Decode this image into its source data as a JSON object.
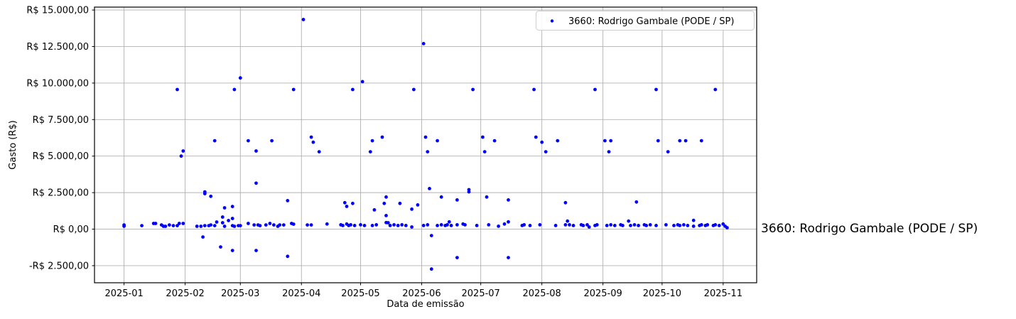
{
  "chart_data": {
    "type": "scatter",
    "title": "",
    "xlabel": "Data de emissão",
    "ylabel": "Gasto (R$)",
    "grid": true,
    "x_tick_labels": [
      "2025-01",
      "2025-02",
      "2025-03",
      "2025-04",
      "2025-05",
      "2025-06",
      "2025-07",
      "2025-08",
      "2025-09",
      "2025-10",
      "2025-11"
    ],
    "y_tick_labels": [
      "R$ 15.000,00",
      "R$ 12.500,00",
      "R$ 10.000,00",
      "R$ 7.500,00",
      "R$ 5.000,00",
      "R$ 2.500,00",
      "R$ 0,00",
      "-R$ 2.500,00"
    ],
    "y_tick_values": [
      15000,
      12500,
      10000,
      7500,
      5000,
      2500,
      0,
      -2500
    ],
    "xlim": [
      "2024-12-17",
      "2025-11-18"
    ],
    "ylim": [
      -3670,
      15200
    ],
    "legend": {
      "label": "3660: Rodrigo Gambale (PODE / SP)",
      "position": "upper right",
      "marker_color": "#0000ff"
    },
    "annotation": {
      "text": "3660: Rodrigo Gambale (PODE / SP)",
      "color": "#1a1aff"
    },
    "colors": {
      "marker": "#0000ff",
      "grid": "#b0b0b0",
      "axis": "#000000",
      "background": "#ffffff",
      "legend_border": "#cccccc"
    },
    "series": [
      {
        "name": "3660: Rodrigo Gambale (PODE / SP)",
        "points": [
          [
            "2025-01-28",
            9560
          ],
          [
            "2025-02-26",
            9560
          ],
          [
            "2025-03-28",
            9560
          ],
          [
            "2025-04-27",
            9560
          ],
          [
            "2025-05-28",
            9560
          ],
          [
            "2025-06-27",
            9560
          ],
          [
            "2025-07-28",
            9560
          ],
          [
            "2025-08-28",
            9560
          ],
          [
            "2025-09-28",
            9560
          ],
          [
            "2025-10-28",
            9560
          ],
          [
            "2025-03-01",
            10350
          ],
          [
            "2025-05-02",
            10100
          ],
          [
            "2025-04-02",
            14350
          ],
          [
            "2025-06-02",
            12700
          ],
          [
            "2025-02-16",
            6050
          ],
          [
            "2025-03-05",
            6050
          ],
          [
            "2025-03-17",
            6050
          ],
          [
            "2025-04-06",
            6300
          ],
          [
            "2025-04-07",
            5950
          ],
          [
            "2025-05-07",
            6050
          ],
          [
            "2025-05-12",
            6300
          ],
          [
            "2025-06-03",
            6300
          ],
          [
            "2025-06-09",
            6050
          ],
          [
            "2025-07-02",
            6300
          ],
          [
            "2025-07-08",
            6050
          ],
          [
            "2025-07-29",
            6300
          ],
          [
            "2025-08-01",
            5950
          ],
          [
            "2025-08-09",
            6050
          ],
          [
            "2025-09-02",
            6050
          ],
          [
            "2025-09-05",
            6050
          ],
          [
            "2025-09-29",
            6050
          ],
          [
            "2025-10-10",
            6050
          ],
          [
            "2025-10-13",
            6050
          ],
          [
            "2025-10-21",
            6050
          ],
          [
            "2025-01-30",
            5000
          ],
          [
            "2025-01-31",
            5350
          ],
          [
            "2025-03-09",
            5350
          ],
          [
            "2025-04-10",
            5300
          ],
          [
            "2025-05-06",
            5300
          ],
          [
            "2025-06-04",
            5300
          ],
          [
            "2025-07-03",
            5300
          ],
          [
            "2025-08-03",
            5300
          ],
          [
            "2025-09-04",
            5300
          ],
          [
            "2025-10-04",
            5300
          ],
          [
            "2025-03-09",
            3150
          ],
          [
            "2025-02-11",
            2550
          ],
          [
            "2025-02-11",
            2430
          ],
          [
            "2025-02-14",
            2250
          ],
          [
            "2025-02-21",
            1460
          ],
          [
            "2025-02-25",
            1550
          ],
          [
            "2025-02-20",
            830
          ],
          [
            "2025-02-25",
            730
          ],
          [
            "2025-03-25",
            1950
          ],
          [
            "2025-04-23",
            1810
          ],
          [
            "2025-04-24",
            1560
          ],
          [
            "2025-04-27",
            1760
          ],
          [
            "2025-05-08",
            1320
          ],
          [
            "2025-05-13",
            1760
          ],
          [
            "2025-05-14",
            2200
          ],
          [
            "2025-05-14",
            930
          ],
          [
            "2025-05-15",
            440
          ],
          [
            "2025-05-21",
            1760
          ],
          [
            "2025-05-27",
            1370
          ],
          [
            "2025-05-30",
            1660
          ],
          [
            "2025-06-05",
            2780
          ],
          [
            "2025-06-11",
            2200
          ],
          [
            "2025-06-19",
            2000
          ],
          [
            "2025-06-25",
            2700
          ],
          [
            "2025-06-25",
            2550
          ],
          [
            "2025-07-04",
            2200
          ],
          [
            "2025-07-15",
            2000
          ],
          [
            "2025-08-13",
            1810
          ],
          [
            "2025-09-18",
            1860
          ],
          [
            "2025-02-10",
            -540
          ],
          [
            "2025-02-19",
            -1220
          ],
          [
            "2025-02-25",
            -1460
          ],
          [
            "2025-03-09",
            -1460
          ],
          [
            "2025-03-25",
            -1860
          ],
          [
            "2025-06-06",
            -440
          ],
          [
            "2025-06-06",
            -2730
          ],
          [
            "2025-06-19",
            -1950
          ],
          [
            "2025-07-15",
            -1950
          ],
          [
            "2025-01-01",
            290
          ],
          [
            "2025-01-01",
            200
          ],
          [
            "2025-01-10",
            240
          ],
          [
            "2025-01-16",
            390
          ],
          [
            "2025-01-17",
            390
          ],
          [
            "2025-01-20",
            290
          ],
          [
            "2025-01-21",
            195
          ],
          [
            "2025-01-22",
            195
          ],
          [
            "2025-01-24",
            290
          ],
          [
            "2025-01-26",
            240
          ],
          [
            "2025-01-28",
            240
          ],
          [
            "2025-01-29",
            390
          ],
          [
            "2025-01-31",
            390
          ],
          [
            "2025-02-07",
            195
          ],
          [
            "2025-02-09",
            195
          ],
          [
            "2025-02-11",
            240
          ],
          [
            "2025-02-13",
            240
          ],
          [
            "2025-02-14",
            290
          ],
          [
            "2025-02-16",
            240
          ],
          [
            "2025-02-17",
            490
          ],
          [
            "2025-02-20",
            440
          ],
          [
            "2025-02-21",
            195
          ],
          [
            "2025-02-23",
            590
          ],
          [
            "2025-02-25",
            240
          ],
          [
            "2025-02-26",
            195
          ],
          [
            "2025-02-28",
            240
          ],
          [
            "2025-03-01",
            240
          ],
          [
            "2025-03-05",
            390
          ],
          [
            "2025-03-08",
            290
          ],
          [
            "2025-03-10",
            290
          ],
          [
            "2025-03-11",
            240
          ],
          [
            "2025-03-14",
            290
          ],
          [
            "2025-03-16",
            390
          ],
          [
            "2025-03-18",
            290
          ],
          [
            "2025-03-20",
            195
          ],
          [
            "2025-03-21",
            290
          ],
          [
            "2025-03-23",
            290
          ],
          [
            "2025-03-27",
            390
          ],
          [
            "2025-03-28",
            340
          ],
          [
            "2025-04-04",
            290
          ],
          [
            "2025-04-06",
            290
          ],
          [
            "2025-04-14",
            350
          ],
          [
            "2025-04-21",
            300
          ],
          [
            "2025-04-22",
            250
          ],
          [
            "2025-04-24",
            350
          ],
          [
            "2025-04-25",
            250
          ],
          [
            "2025-04-26",
            300
          ],
          [
            "2025-04-28",
            250
          ],
          [
            "2025-05-01",
            300
          ],
          [
            "2025-05-03",
            250
          ],
          [
            "2025-05-07",
            250
          ],
          [
            "2025-05-09",
            300
          ],
          [
            "2025-05-14",
            450
          ],
          [
            "2025-05-16",
            250
          ],
          [
            "2025-05-18",
            300
          ],
          [
            "2025-05-20",
            250
          ],
          [
            "2025-05-22",
            300
          ],
          [
            "2025-05-24",
            250
          ],
          [
            "2025-05-27",
            150
          ],
          [
            "2025-06-02",
            250
          ],
          [
            "2025-06-04",
            300
          ],
          [
            "2025-06-09",
            250
          ],
          [
            "2025-06-11",
            300
          ],
          [
            "2025-06-13",
            250
          ],
          [
            "2025-06-14",
            300
          ],
          [
            "2025-06-15",
            500
          ],
          [
            "2025-06-16",
            250
          ],
          [
            "2025-06-19",
            300
          ],
          [
            "2025-06-22",
            350
          ],
          [
            "2025-06-23",
            300
          ],
          [
            "2025-06-29",
            250
          ],
          [
            "2025-07-05",
            300
          ],
          [
            "2025-07-10",
            200
          ],
          [
            "2025-07-13",
            350
          ],
          [
            "2025-07-15",
            500
          ],
          [
            "2025-07-22",
            250
          ],
          [
            "2025-07-23",
            300
          ],
          [
            "2025-07-26",
            250
          ],
          [
            "2025-07-31",
            300
          ],
          [
            "2025-08-08",
            250
          ],
          [
            "2025-08-13",
            300
          ],
          [
            "2025-08-14",
            550
          ],
          [
            "2025-08-15",
            300
          ],
          [
            "2025-08-17",
            250
          ],
          [
            "2025-08-21",
            300
          ],
          [
            "2025-08-22",
            250
          ],
          [
            "2025-08-24",
            300
          ],
          [
            "2025-08-25",
            150
          ],
          [
            "2025-08-28",
            250
          ],
          [
            "2025-08-29",
            300
          ],
          [
            "2025-09-03",
            250
          ],
          [
            "2025-09-05",
            300
          ],
          [
            "2025-09-07",
            250
          ],
          [
            "2025-09-10",
            300
          ],
          [
            "2025-09-11",
            250
          ],
          [
            "2025-09-14",
            550
          ],
          [
            "2025-09-15",
            250
          ],
          [
            "2025-09-17",
            300
          ],
          [
            "2025-09-19",
            250
          ],
          [
            "2025-09-22",
            300
          ],
          [
            "2025-09-23",
            250
          ],
          [
            "2025-09-25",
            300
          ],
          [
            "2025-09-28",
            250
          ],
          [
            "2025-10-03",
            300
          ],
          [
            "2025-10-07",
            250
          ],
          [
            "2025-10-09",
            300
          ],
          [
            "2025-10-10",
            250
          ],
          [
            "2025-10-12",
            300
          ],
          [
            "2025-10-14",
            250
          ],
          [
            "2025-10-17",
            600
          ],
          [
            "2025-10-17",
            200
          ],
          [
            "2025-10-20",
            250
          ],
          [
            "2025-10-21",
            300
          ],
          [
            "2025-10-23",
            250
          ],
          [
            "2025-10-24",
            300
          ],
          [
            "2025-10-27",
            250
          ],
          [
            "2025-10-28",
            300
          ],
          [
            "2025-10-30",
            250
          ],
          [
            "2025-11-01",
            350
          ],
          [
            "2025-11-02",
            200
          ],
          [
            "2025-11-03",
            100
          ]
        ]
      }
    ]
  }
}
